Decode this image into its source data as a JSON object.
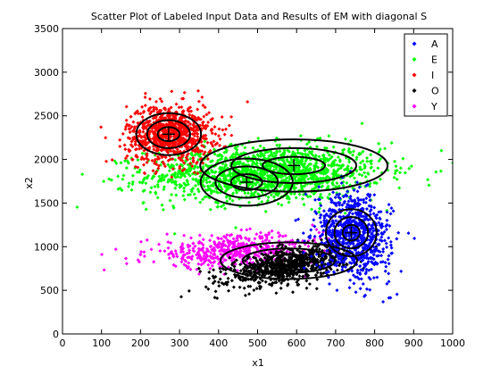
{
  "chart_data": {
    "type": "scatter",
    "title": "Scatter Plot of Labeled Input Data and Results of EM with diagonal S",
    "xlabel": "x1",
    "ylabel": "x2",
    "xlim": [
      0,
      1000
    ],
    "ylim": [
      0,
      3500
    ],
    "xticks": [
      0,
      100,
      200,
      300,
      400,
      500,
      600,
      700,
      800,
      900,
      1000
    ],
    "yticks": [
      0,
      500,
      1000,
      1500,
      2000,
      2500,
      3000,
      3500
    ],
    "grid": false,
    "legend_position": "top-right",
    "series": [
      {
        "name": "A",
        "color": "#0000ff",
        "n": 800,
        "mean": [
          745,
          1130
        ],
        "sd": [
          48,
          240
        ],
        "corr": -0.15
      },
      {
        "name": "E",
        "color": "#00ff00",
        "n": 1500,
        "mean": [
          520,
          1840
        ],
        "sd": [
          150,
          160
        ],
        "corr": 0.1
      },
      {
        "name": "I",
        "color": "#ff0000",
        "n": 900,
        "mean": [
          275,
          2290
        ],
        "sd": [
          55,
          170
        ],
        "corr": 0.0
      },
      {
        "name": "O",
        "color": "#000000",
        "n": 800,
        "mean": [
          575,
          780
        ],
        "sd": [
          75,
          110
        ],
        "corr": 0.55
      },
      {
        "name": "Y",
        "color": "#ff00ff",
        "n": 500,
        "mean": [
          440,
          950
        ],
        "sd": [
          110,
          95
        ],
        "corr": 0.2
      }
    ],
    "gaussian_components": [
      {
        "center": [
          272,
          2290
        ],
        "radii": [
          [
            28,
            80
          ],
          [
            55,
            160
          ],
          [
            83,
            240
          ]
        ]
      },
      {
        "center": [
          472,
          1740
        ],
        "radii": [
          [
            40,
            90
          ],
          [
            80,
            180
          ],
          [
            118,
            270
          ]
        ]
      },
      {
        "center": [
          593,
          1930
        ],
        "radii": [
          [
            80,
            100
          ],
          [
            160,
            200
          ],
          [
            240,
            300
          ]
        ]
      },
      {
        "center": [
          740,
          1160
        ],
        "radii": [
          [
            22,
            90
          ],
          [
            43,
            180
          ],
          [
            65,
            270
          ]
        ]
      },
      {
        "center": [
          580,
          840
        ],
        "radii": [
          [
            58,
            70
          ],
          [
            118,
            140
          ],
          [
            175,
            210
          ]
        ]
      }
    ]
  }
}
